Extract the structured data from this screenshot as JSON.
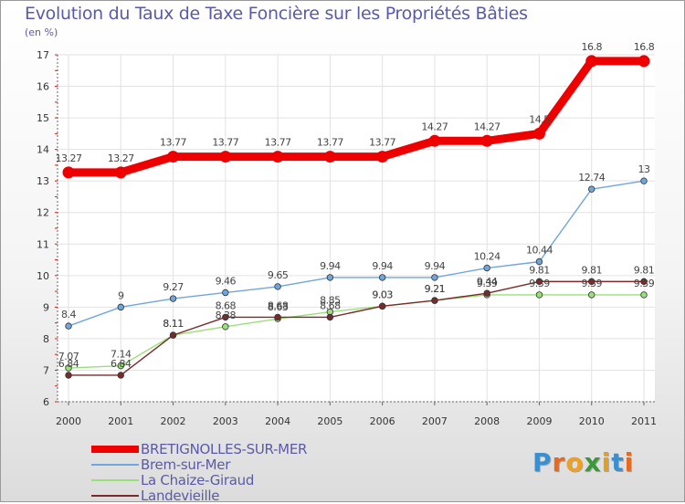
{
  "title": "Evolution du Taux de Taxe Foncière sur les Propriétés Bâties",
  "subtitle": "(en %)",
  "logo": {
    "letters": [
      "P",
      "r",
      "o",
      "x",
      "i",
      "t",
      "i"
    ],
    "colors": [
      "#3a8fd0",
      "#e86a1e",
      "#f0a020",
      "#3a9a3a",
      "#e0a020",
      "#3a8fd0",
      "#e86a1e"
    ]
  },
  "chart_data": {
    "type": "line",
    "title": "Evolution du Taux de Taxe Foncière sur les Propriétés Bâties",
    "ylabel": "(en %)",
    "xlabel": "",
    "categories": [
      "2000",
      "2001",
      "2002",
      "2003",
      "2004",
      "2005",
      "2006",
      "2007",
      "2008",
      "2009",
      "2010",
      "2011"
    ],
    "ylim": [
      6,
      17
    ],
    "yticks": [
      "6",
      "7",
      "8",
      "9",
      "10",
      "11",
      "12",
      "13",
      "14",
      "15",
      "16",
      "17"
    ],
    "grid": true,
    "series": [
      {
        "name": "BRETIGNOLLES-SUR-MER",
        "color": "#ee0000",
        "weight": "thick",
        "values": [
          13.27,
          13.27,
          13.77,
          13.77,
          13.77,
          13.77,
          13.77,
          14.27,
          14.27,
          14.5,
          16.8,
          16.8
        ],
        "labels": [
          "13.27",
          "13.27",
          "13.77",
          "13.77",
          "13.77",
          "13.77",
          "13.77",
          "14.27",
          "14.27",
          "14.5",
          "16.8",
          "16.8"
        ]
      },
      {
        "name": "Brem-sur-Mer",
        "color": "#6fa6dc",
        "weight": "thin",
        "values": [
          8.4,
          9,
          9.27,
          9.46,
          9.65,
          9.94,
          9.94,
          9.94,
          10.24,
          10.44,
          12.74,
          13
        ],
        "labels": [
          "8.4",
          "9",
          "9.27",
          "9.46",
          "9.65",
          "9.94",
          "9.94",
          "9.94",
          "10.24",
          "10.44",
          "12.74",
          "13"
        ]
      },
      {
        "name": "La Chaize-Giraud",
        "color": "#99e07a",
        "weight": "thin",
        "values": [
          7.07,
          7.14,
          8.11,
          8.38,
          8.63,
          8.85,
          9.03,
          9.21,
          9.39,
          9.39,
          9.39,
          9.39
        ],
        "labels": [
          "7.07",
          "7.14",
          "8.11",
          "8.38",
          "8.63",
          "8.85",
          "9.03",
          "9.21",
          "9.39",
          "9.39",
          "9.39",
          "9.39"
        ]
      },
      {
        "name": "Landevieille",
        "color": "#7a2a2a",
        "weight": "thin",
        "values": [
          6.84,
          6.84,
          8.11,
          8.68,
          8.68,
          8.68,
          9.03,
          9.21,
          9.44,
          9.81,
          9.81,
          9.81
        ],
        "labels": [
          "6.84",
          "6.84",
          "8.11",
          "8.68",
          "8.68",
          "8.68",
          "9.03",
          "9.21",
          "9.44",
          "9.81",
          "9.81",
          "9.81"
        ]
      }
    ]
  }
}
